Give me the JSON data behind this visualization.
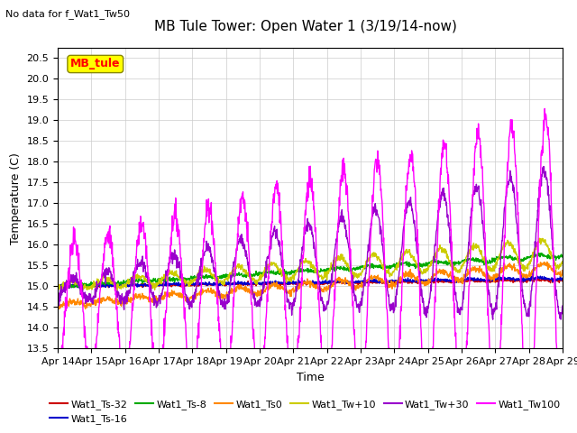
{
  "title": "MB Tule Tower: Open Water 1 (3/19/14-now)",
  "no_data_text": "No data for f_Wat1_Tw50",
  "xlabel": "Time",
  "ylabel": "Temperature (C)",
  "ylim": [
    13.5,
    20.75
  ],
  "yticks": [
    13.5,
    14.0,
    14.5,
    15.0,
    15.5,
    16.0,
    16.5,
    17.0,
    17.5,
    18.0,
    18.5,
    19.0,
    19.5,
    20.0,
    20.5
  ],
  "xtick_labels": [
    "Apr 14",
    "Apr 15",
    "Apr 16",
    "Apr 17",
    "Apr 18",
    "Apr 19",
    "Apr 20",
    "Apr 21",
    "Apr 22",
    "Apr 23",
    "Apr 24",
    "Apr 25",
    "Apr 26",
    "Apr 27",
    "Apr 28",
    "Apr 29"
  ],
  "legend_box_text": "MB_tule",
  "legend_box_color": "#ffff00",
  "legend_box_border": "#888800",
  "legend_box_text_color": "#ff0000",
  "series": [
    {
      "name": "Wat1_Ts-32",
      "color": "#cc0000",
      "lw": 1.0
    },
    {
      "name": "Wat1_Ts-16",
      "color": "#0000cc",
      "lw": 1.0
    },
    {
      "name": "Wat1_Ts-8",
      "color": "#00aa00",
      "lw": 1.0
    },
    {
      "name": "Wat1_Ts0",
      "color": "#ff8800",
      "lw": 1.0
    },
    {
      "name": "Wat1_Tw+10",
      "color": "#cccc00",
      "lw": 1.0
    },
    {
      "name": "Wat1_Tw+30",
      "color": "#9900cc",
      "lw": 1.0
    },
    {
      "name": "Wat1_Tw100",
      "color": "#ff00ff",
      "lw": 1.0
    }
  ],
  "background_color": "#ffffff",
  "grid_color": "#cccccc",
  "title_fontsize": 11,
  "axis_fontsize": 9,
  "tick_fontsize": 8
}
